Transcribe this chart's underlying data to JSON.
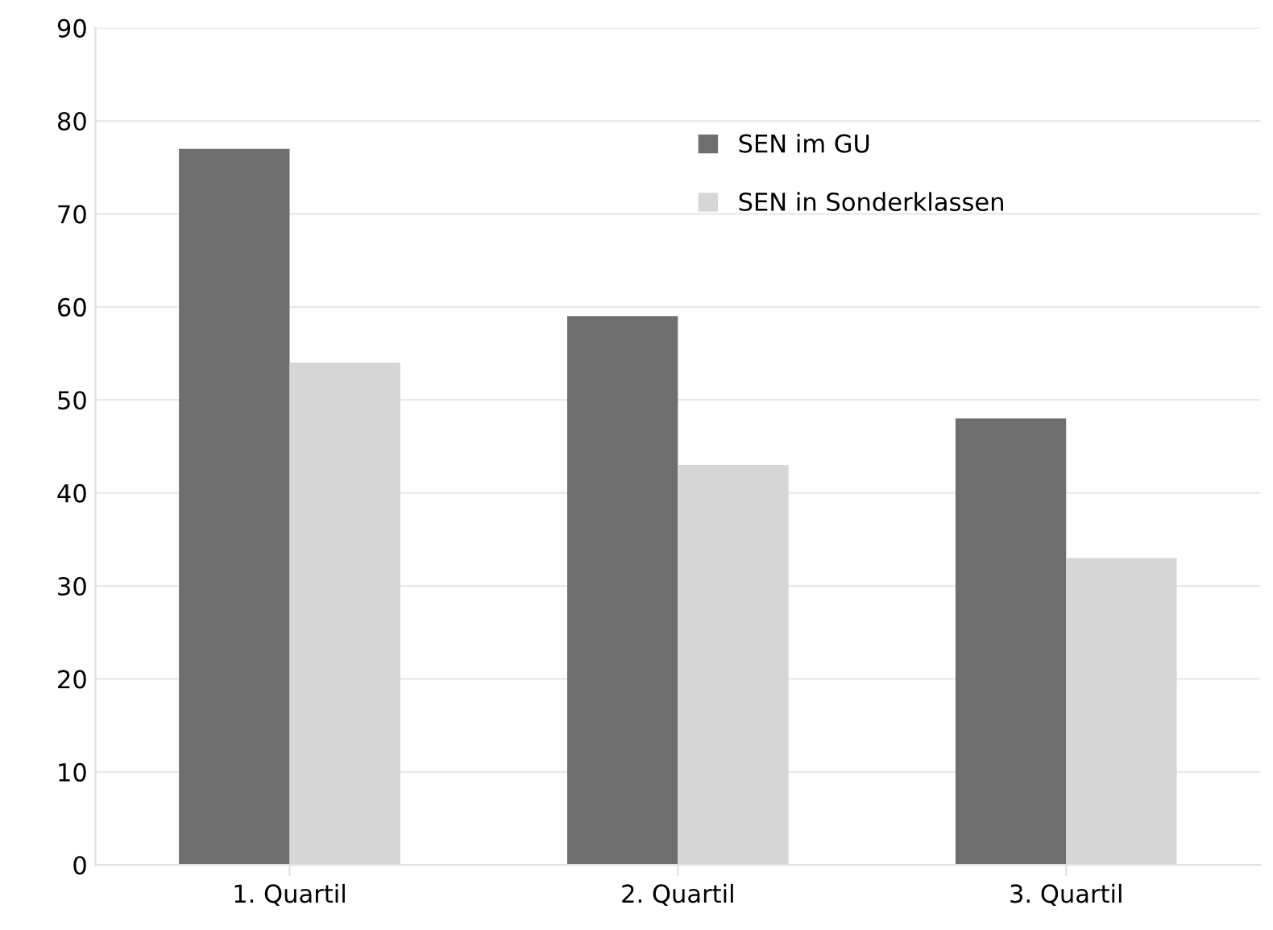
{
  "chart_data": {
    "type": "bar",
    "categories": [
      "1. Quartil",
      "2. Quartil",
      "3. Quartil"
    ],
    "series": [
      {
        "name": "SEN im GU",
        "color": "#6e6e6e",
        "values": [
          77,
          59,
          48
        ]
      },
      {
        "name": "SEN in Sonderklassen",
        "color": "#d6d6d6",
        "values": [
          54,
          43,
          33
        ]
      }
    ],
    "ylim": [
      0,
      90
    ],
    "yticks": [
      0,
      10,
      20,
      30,
      40,
      50,
      60,
      70,
      80,
      90
    ],
    "grid": "y",
    "legend": "top right"
  }
}
